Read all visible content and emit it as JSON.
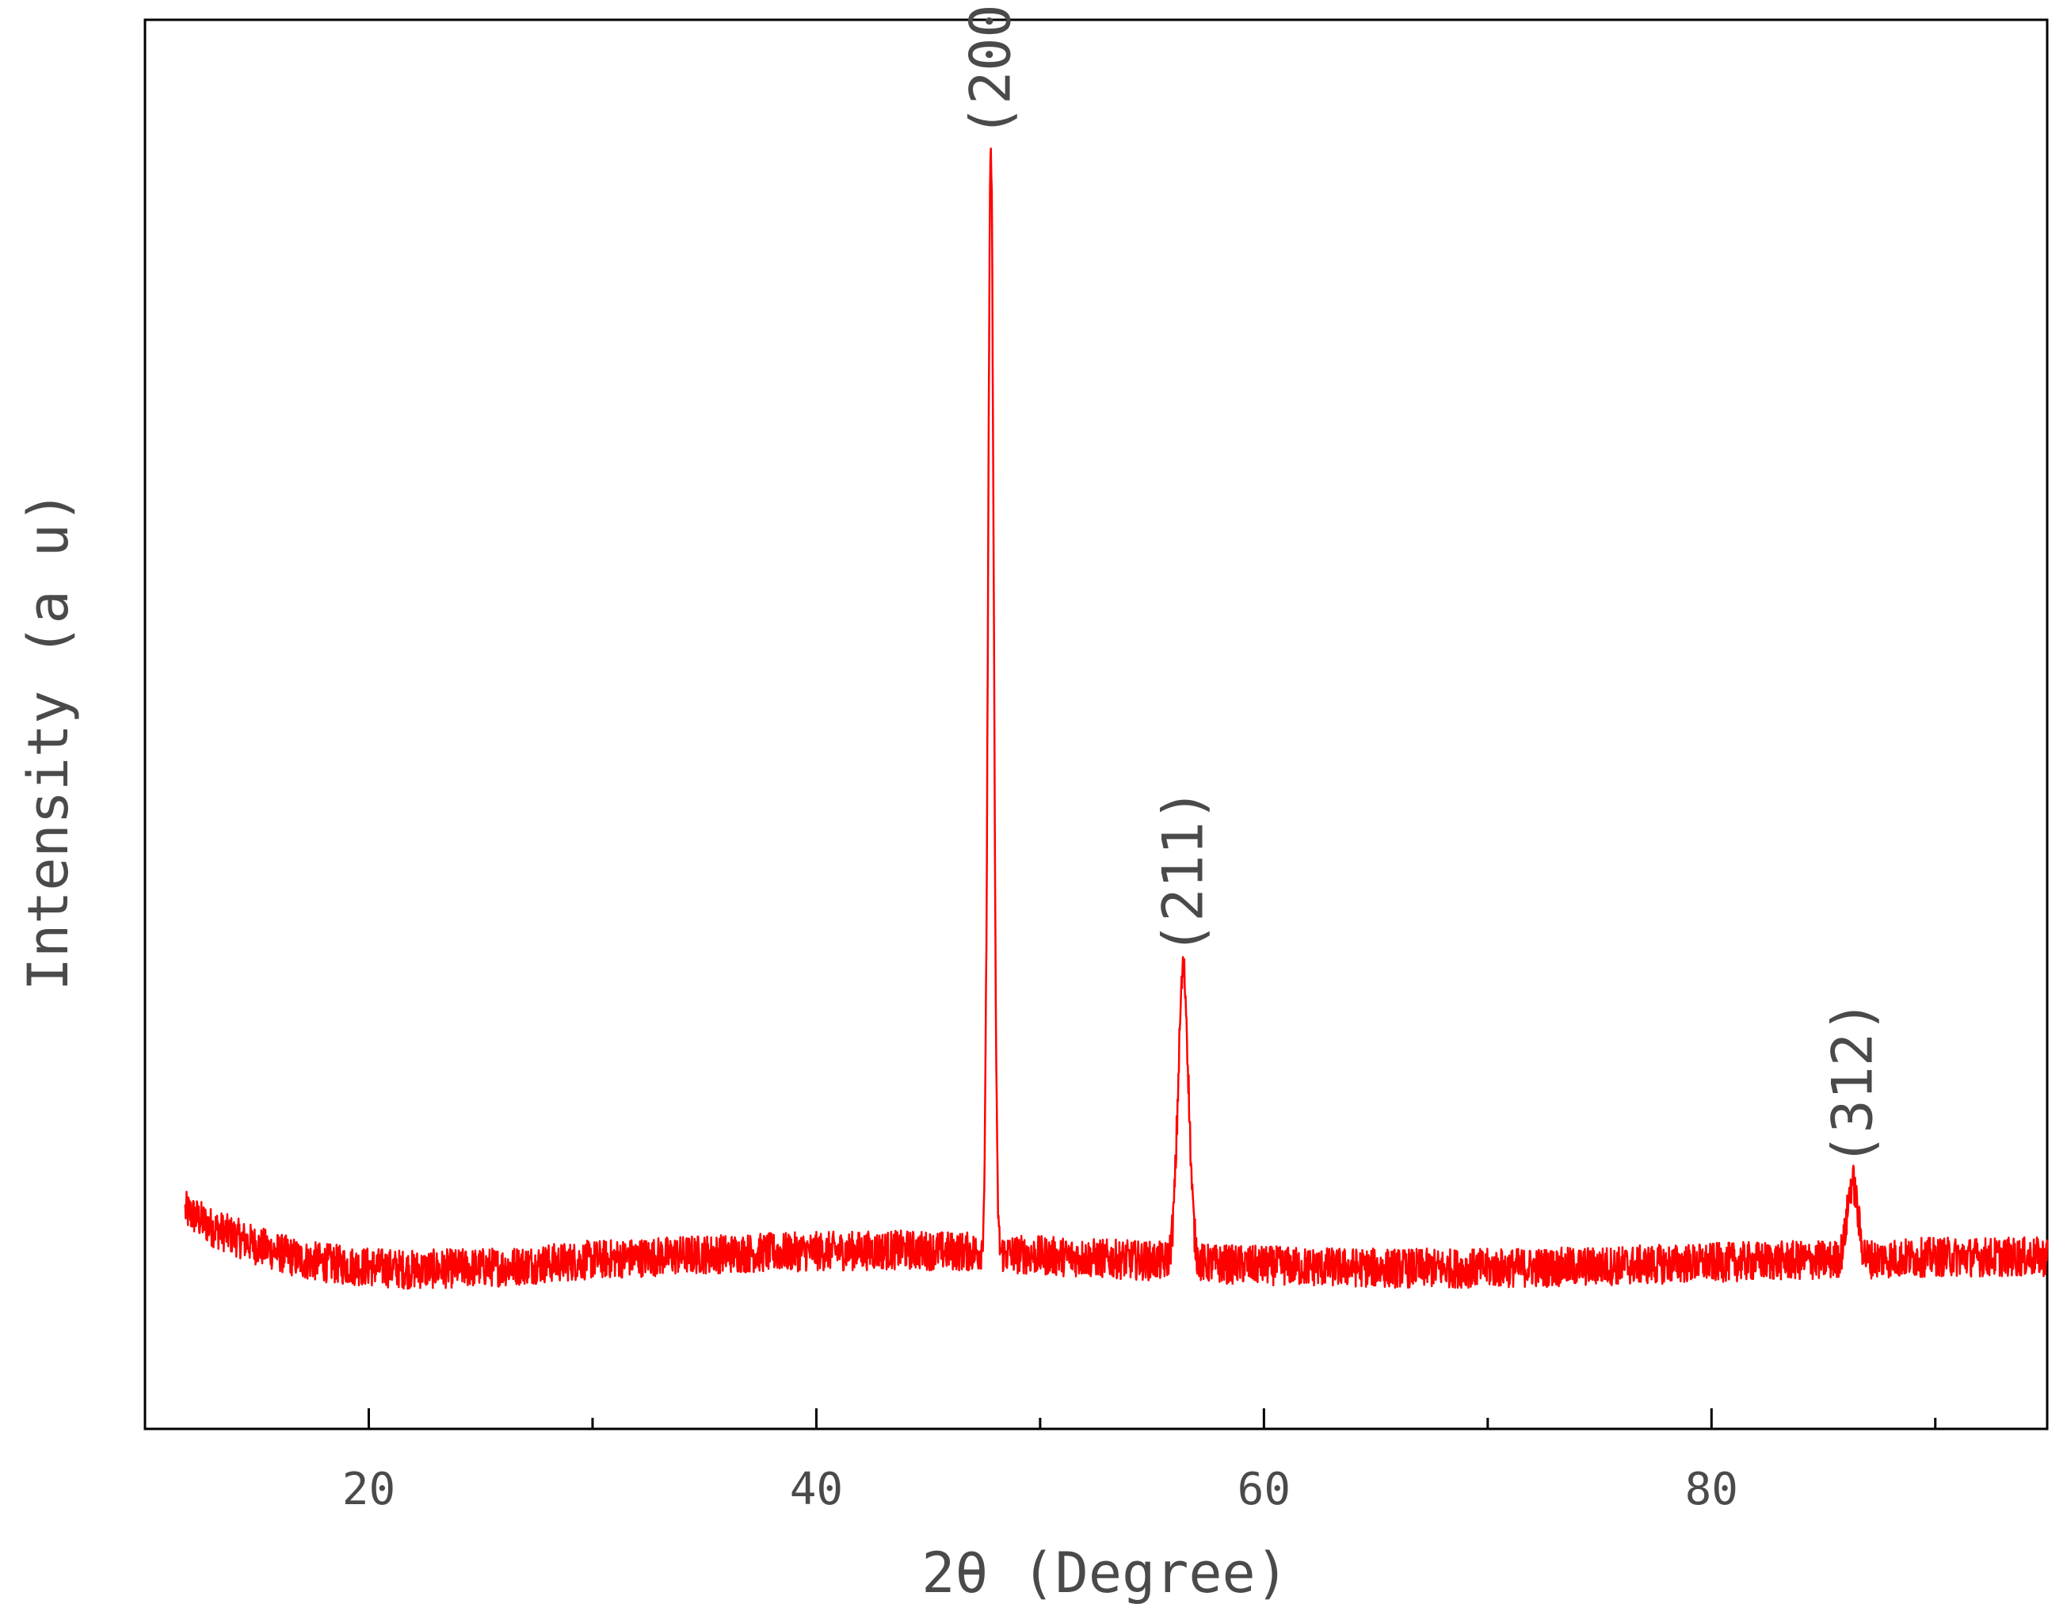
{
  "chart_data": {
    "type": "line",
    "xlabel": "2θ (Degree)",
    "ylabel": "Intensity (a u)",
    "xlim": [
      10,
      95
    ],
    "ylim": [
      0,
      100
    ],
    "x_ticks_major": [
      20,
      40,
      60,
      80
    ],
    "x_ticks_minor": [
      30,
      50,
      70,
      90
    ],
    "grid": false,
    "line_color": "#ff0000",
    "baseline": [
      [
        11.8,
        15.5
      ],
      [
        13,
        14.3
      ],
      [
        15,
        13.0
      ],
      [
        17,
        12.0
      ],
      [
        19,
        11.6
      ],
      [
        22,
        11.3
      ],
      [
        26,
        11.5
      ],
      [
        30,
        12.0
      ],
      [
        35,
        12.4
      ],
      [
        40,
        12.6
      ],
      [
        44,
        12.7
      ],
      [
        46.5,
        12.6
      ],
      [
        50,
        12.3
      ],
      [
        54,
        12.0
      ],
      [
        58,
        11.7
      ],
      [
        62,
        11.5
      ],
      [
        66,
        11.4
      ],
      [
        70,
        11.4
      ],
      [
        74,
        11.5
      ],
      [
        78,
        11.7
      ],
      [
        82,
        11.9
      ],
      [
        86,
        12.0
      ],
      [
        90,
        12.2
      ],
      [
        95,
        12.2
      ]
    ],
    "noise_amplitude": 1.4,
    "peaks": [
      {
        "label": "(200)",
        "x": 47.8,
        "y": 90.5,
        "fwhm": 0.3
      },
      {
        "label": "(211)",
        "x": 56.4,
        "y": 32.5,
        "fwhm": 0.55
      },
      {
        "label": "(312)",
        "x": 86.3,
        "y": 17.5,
        "fwhm": 0.55
      }
    ]
  }
}
